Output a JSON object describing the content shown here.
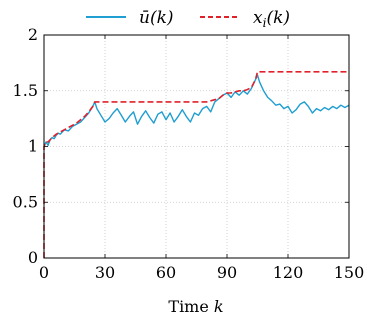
{
  "chart_data": {
    "type": "line",
    "xlabel": "Time k",
    "ylabel": "",
    "xlim": [
      0,
      150
    ],
    "ylim": [
      0,
      2
    ],
    "xticks": [
      "0",
      "30",
      "60",
      "90",
      "120",
      "150"
    ],
    "yticks": [
      "0",
      "0.5",
      "1",
      "1.5",
      "2"
    ],
    "grid": true,
    "legend_position": "top",
    "series": [
      {
        "name": "ū(k)",
        "color": "#1f9ed1",
        "style": "solid",
        "x": [
          0,
          1,
          2,
          3,
          4,
          5,
          6,
          7,
          8,
          10,
          12,
          14,
          16,
          18,
          20,
          22,
          24,
          25,
          26,
          28,
          30,
          32,
          34,
          36,
          38,
          40,
          42,
          44,
          46,
          48,
          50,
          52,
          54,
          56,
          58,
          60,
          62,
          64,
          66,
          68,
          70,
          72,
          74,
          76,
          78,
          80,
          82,
          84,
          86,
          88,
          90,
          92,
          94,
          96,
          98,
          100,
          102,
          104,
          105,
          106,
          108,
          110,
          112,
          114,
          116,
          118,
          120,
          122,
          124,
          126,
          128,
          130,
          132,
          134,
          136,
          138,
          140,
          142,
          144,
          146,
          148,
          150
        ],
        "y": [
          1.0,
          1.04,
          1.01,
          1.06,
          1.08,
          1.07,
          1.1,
          1.12,
          1.11,
          1.15,
          1.14,
          1.18,
          1.2,
          1.22,
          1.26,
          1.3,
          1.36,
          1.4,
          1.34,
          1.28,
          1.22,
          1.25,
          1.3,
          1.34,
          1.28,
          1.22,
          1.27,
          1.31,
          1.2,
          1.27,
          1.32,
          1.26,
          1.21,
          1.29,
          1.31,
          1.24,
          1.3,
          1.22,
          1.27,
          1.33,
          1.27,
          1.22,
          1.3,
          1.28,
          1.34,
          1.36,
          1.31,
          1.4,
          1.43,
          1.46,
          1.48,
          1.44,
          1.49,
          1.46,
          1.5,
          1.47,
          1.52,
          1.6,
          1.64,
          1.58,
          1.5,
          1.44,
          1.41,
          1.37,
          1.38,
          1.34,
          1.36,
          1.3,
          1.33,
          1.38,
          1.4,
          1.36,
          1.3,
          1.34,
          1.32,
          1.35,
          1.33,
          1.36,
          1.34,
          1.37,
          1.35,
          1.37
        ]
      },
      {
        "name": "x_i(k)",
        "color": "#e0202a",
        "style": "dashed",
        "x": [
          0,
          0,
          1,
          2,
          4,
          6,
          8,
          10,
          12,
          14,
          16,
          18,
          20,
          22,
          24,
          25,
          80,
          82,
          84,
          86,
          88,
          90,
          92,
          94,
          96,
          98,
          100,
          102,
          104,
          105,
          150
        ],
        "y": [
          0.0,
          1.0,
          1.04,
          1.04,
          1.08,
          1.11,
          1.13,
          1.15,
          1.17,
          1.19,
          1.21,
          1.24,
          1.27,
          1.31,
          1.36,
          1.4,
          1.4,
          1.41,
          1.42,
          1.43,
          1.46,
          1.48,
          1.48,
          1.49,
          1.5,
          1.5,
          1.51,
          1.53,
          1.6,
          1.67,
          1.67
        ]
      }
    ]
  },
  "legend": {
    "entries": [
      {
        "label": "ū(k)",
        "color": "#1f9ed1",
        "style": "solid"
      },
      {
        "label": "x",
        "subscript": "i",
        "suffix": "(k)",
        "color": "#e0202a",
        "style": "dashed"
      }
    ]
  }
}
